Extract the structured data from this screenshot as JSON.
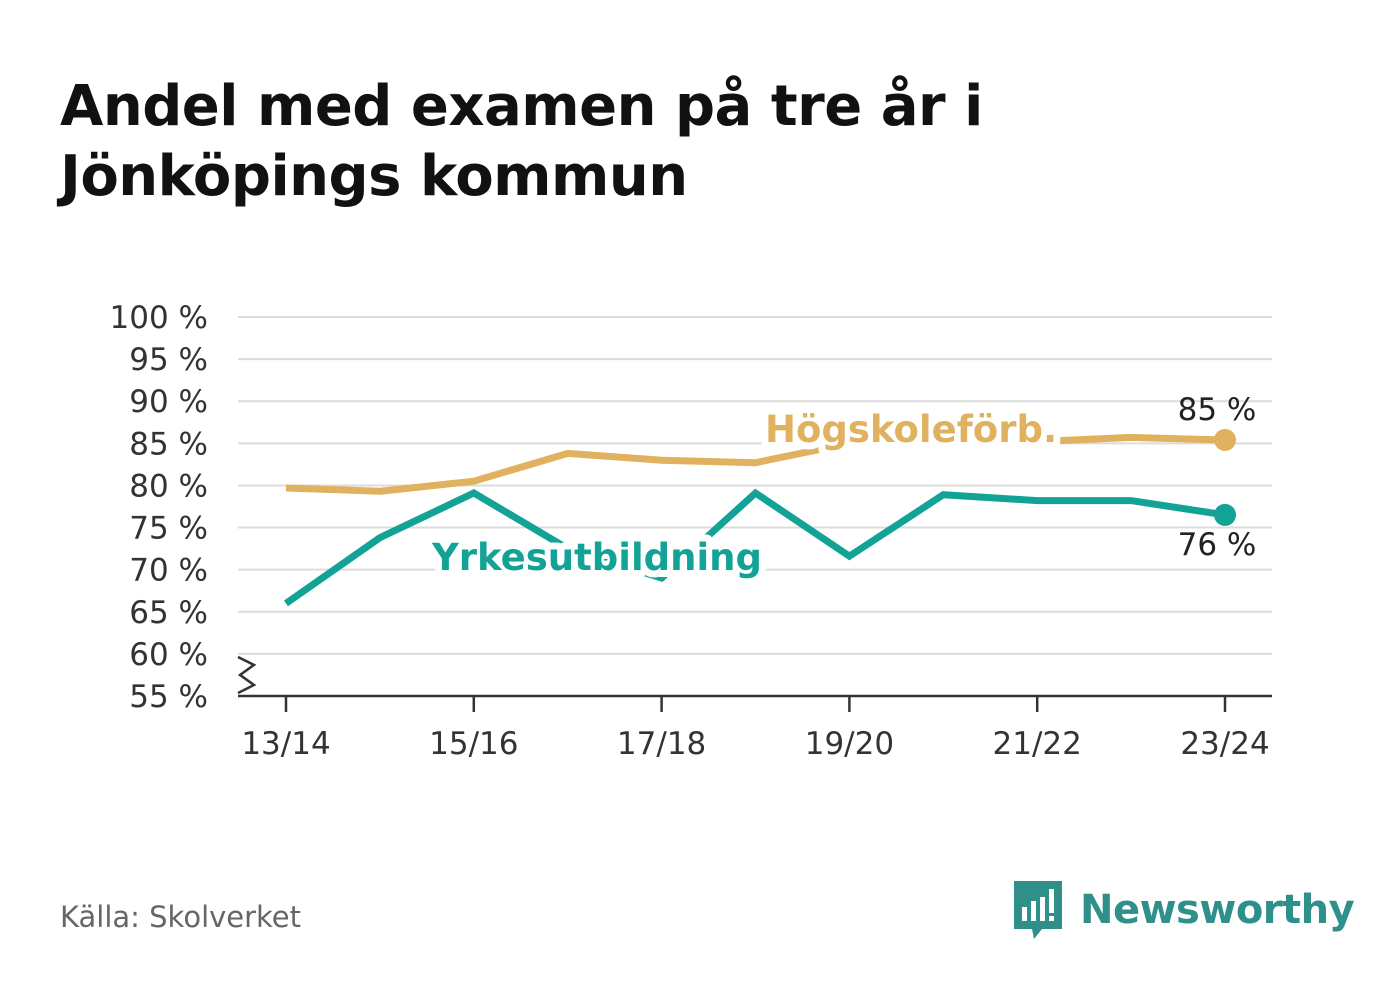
{
  "title": "Andel med examen på tre år i Jönköpings kommun",
  "source": "Källa: Skolverket",
  "brand": {
    "name": "Newsworthy",
    "icon": "newsworthy-logo-icon",
    "color": "#2f8f8a"
  },
  "chart_data": {
    "type": "line",
    "title": "Andel med examen på tre år i Jönköpings kommun",
    "xlabel": "",
    "ylabel": "",
    "ylim": [
      55,
      100
    ],
    "axis_break": true,
    "grid": true,
    "y_ticks": [
      55,
      60,
      65,
      70,
      75,
      80,
      85,
      90,
      95,
      100
    ],
    "y_tick_labels": [
      "55 %",
      "60 %",
      "65 %",
      "70 %",
      "75 %",
      "80 %",
      "85 %",
      "90 %",
      "95 %",
      "100 %"
    ],
    "categories": [
      "13/14",
      "14/15",
      "15/16",
      "16/17",
      "17/18",
      "18/19",
      "19/20",
      "20/21",
      "21/22",
      "22/23",
      "23/24"
    ],
    "x_tick_labels": [
      "13/14",
      "",
      "15/16",
      "",
      "17/18",
      "",
      "19/20",
      "",
      "21/22",
      "",
      "23/24"
    ],
    "series": [
      {
        "name": "Högskoleförb.",
        "color": "#e0b15f",
        "values": [
          79.7,
          79.3,
          80.5,
          83.8,
          83.0,
          82.7,
          85.0,
          85.5,
          85.2,
          85.7,
          85.4
        ],
        "end_label": "85 %"
      },
      {
        "name": "Yrkesutbildning",
        "color": "#13a396",
        "values": [
          66.0,
          73.8,
          79.1,
          72.5,
          69.0,
          79.1,
          71.6,
          78.9,
          78.2,
          78.2,
          76.5
        ],
        "end_label": "76 %"
      }
    ]
  }
}
